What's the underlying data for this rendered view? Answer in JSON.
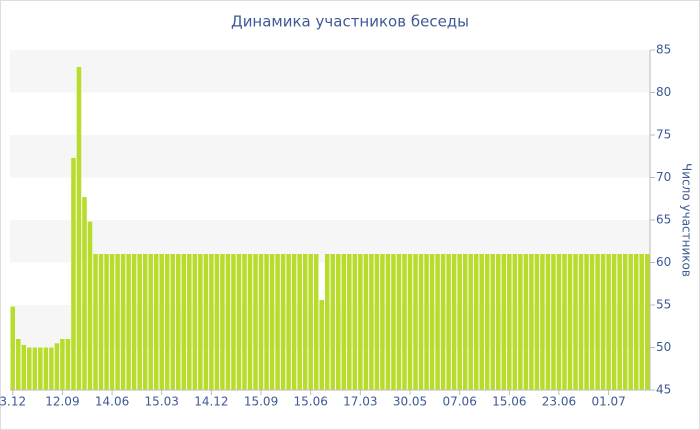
{
  "chart_data": {
    "type": "bar",
    "title": "Динамика участников беседы",
    "y_label": "Число участников",
    "color": "#b8dc2c",
    "y_axis_side": "right",
    "grid": "bands",
    "categories": [
      "3.12",
      null,
      null,
      null,
      null,
      null,
      null,
      null,
      null,
      "12.09",
      null,
      null,
      null,
      null,
      null,
      null,
      null,
      null,
      "14.06",
      null,
      null,
      null,
      null,
      null,
      null,
      null,
      null,
      "15.03",
      null,
      null,
      null,
      null,
      null,
      null,
      null,
      null,
      "14.12",
      null,
      null,
      null,
      null,
      null,
      null,
      null,
      null,
      "15.09",
      null,
      null,
      null,
      null,
      null,
      null,
      null,
      null,
      "15.06",
      null,
      null,
      null,
      null,
      null,
      null,
      null,
      null,
      "17.03",
      null,
      null,
      null,
      null,
      null,
      null,
      null,
      null,
      "30.05",
      null,
      null,
      null,
      null,
      null,
      null,
      null,
      null,
      "07.06",
      null,
      null,
      null,
      null,
      null,
      null,
      null,
      null,
      "15.06",
      null,
      null,
      null,
      null,
      null,
      null,
      null,
      null,
      "23.06",
      null,
      null,
      null,
      null,
      null,
      null,
      null,
      null,
      "01.07",
      null,
      null,
      null,
      null,
      null,
      null,
      null
    ],
    "values": [
      54.8,
      51,
      50.3,
      50,
      50,
      50,
      50,
      50,
      50.5,
      51,
      51,
      72.3,
      83,
      67.7,
      64.8,
      61,
      61,
      61,
      61,
      61,
      61,
      61,
      61,
      61,
      61,
      61,
      61,
      61,
      61,
      61,
      61,
      61,
      61,
      61,
      61,
      61,
      61,
      61,
      61,
      61,
      61,
      61,
      61,
      61,
      61,
      61,
      61,
      61,
      61,
      61,
      61,
      61,
      61,
      61,
      61,
      61,
      55.6,
      61,
      61,
      61,
      61,
      61,
      61,
      61,
      61,
      61,
      61,
      61,
      61,
      61,
      61,
      61,
      61,
      61,
      61,
      61,
      61,
      61,
      61,
      61,
      61,
      61,
      61,
      61,
      61,
      61,
      61,
      61,
      61,
      61,
      61,
      61,
      61,
      61,
      61,
      61,
      61,
      61,
      61,
      61,
      61,
      61,
      61,
      61,
      61,
      61,
      61,
      61,
      61,
      61,
      61,
      61,
      61,
      61,
      61,
      61
    ],
    "ylim": [
      45,
      85
    ],
    "yticks": [
      45,
      50,
      55,
      60,
      65,
      70,
      75,
      80,
      85
    ]
  }
}
